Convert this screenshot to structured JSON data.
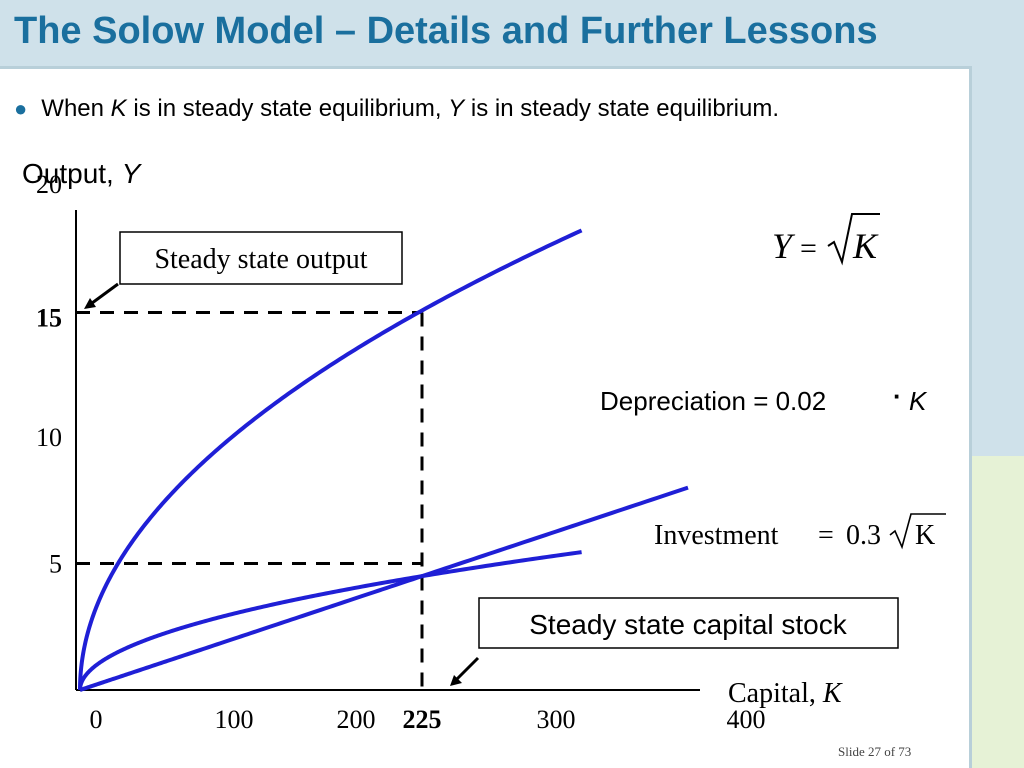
{
  "slide": {
    "title": "The Solow Model – Details and Further Lessons",
    "bullet": {
      "prefix": "When ",
      "var1": "K",
      "middle": " is in steady state equilibrium, ",
      "var2": "Y",
      "suffix": " is in steady state equilibrium."
    },
    "slide_number": "Slide 27 of 73",
    "colors": {
      "title": "#1a6f9e",
      "curves": "#1f1fd6",
      "axes": "#000000"
    }
  },
  "chart_data": {
    "type": "line",
    "ylabel_text": "Output, ",
    "ylabel_var": "Y",
    "xlabel_text": "Capital, ",
    "xlabel_var": "K",
    "xlim": [
      0,
      400
    ],
    "ylim": [
      0,
      20
    ],
    "x_ticks": [
      "0",
      "100",
      "200",
      "300",
      "400"
    ],
    "x_highlight": "225",
    "y_ticks": [
      "5",
      "10",
      "20"
    ],
    "y_highlight": "15",
    "series": [
      {
        "name": "Y = √K",
        "kind": "output",
        "formula": "sqrt(K)",
        "domain": [
          0,
          330
        ]
      },
      {
        "name": "Investment = 0.3√K",
        "kind": "investment",
        "formula": "0.3*sqrt(K)",
        "domain": [
          0,
          330
        ]
      },
      {
        "name": "Depreciation = 0.02·K",
        "kind": "depreciation",
        "formula": "0.02*K",
        "domain": [
          0,
          400
        ]
      }
    ],
    "steady_state": {
      "capital": 225,
      "output": 15,
      "investment": 5
    },
    "labels": {
      "output_formula_y": "Y",
      "output_formula_eq": "=",
      "output_formula_k": "K",
      "depreciation_text": "Depreciation = 0.02",
      "depreciation_dot": "·",
      "depreciation_var": "K",
      "investment_text": "Investment",
      "investment_eq": "=",
      "investment_coef": "0.3",
      "investment_var": "K"
    },
    "annotations": {
      "steady_output": "Steady state output",
      "steady_capital": "Steady state capital stock"
    },
    "grid": false,
    "legend": "none"
  }
}
